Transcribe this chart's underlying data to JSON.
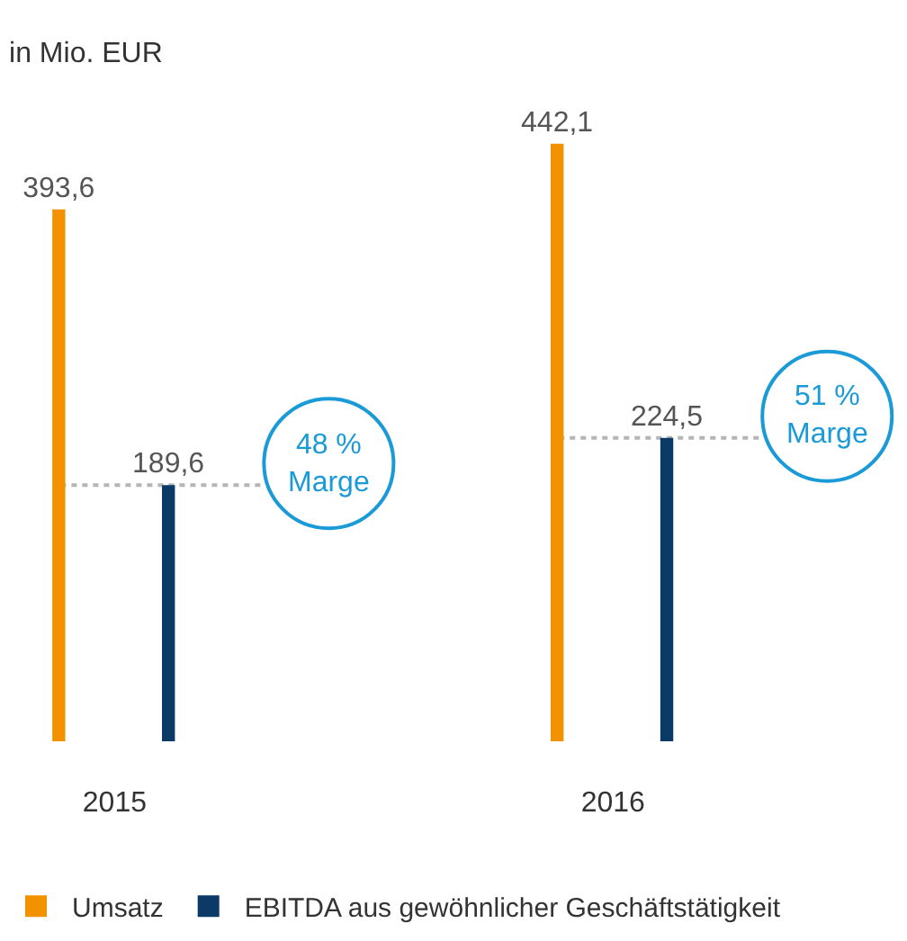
{
  "chart_data": {
    "type": "bar",
    "title": "in Mio. EUR",
    "categories": [
      "2015",
      "2016"
    ],
    "series": [
      {
        "name": "Umsatz",
        "color": "#f39200",
        "values": [
          393.6,
          442.1
        ],
        "value_labels": [
          "393,6",
          "442,1"
        ]
      },
      {
        "name": "EBITDA aus gewöhnlicher Geschäftstätigkeit",
        "color": "#0b3a66",
        "values": [
          189.6,
          224.5
        ],
        "value_labels": [
          "189,6",
          "224,5"
        ]
      }
    ],
    "annotations": [
      "48 %\nMarge",
      "51 %\nMarge"
    ],
    "legend": "bottom left"
  }
}
